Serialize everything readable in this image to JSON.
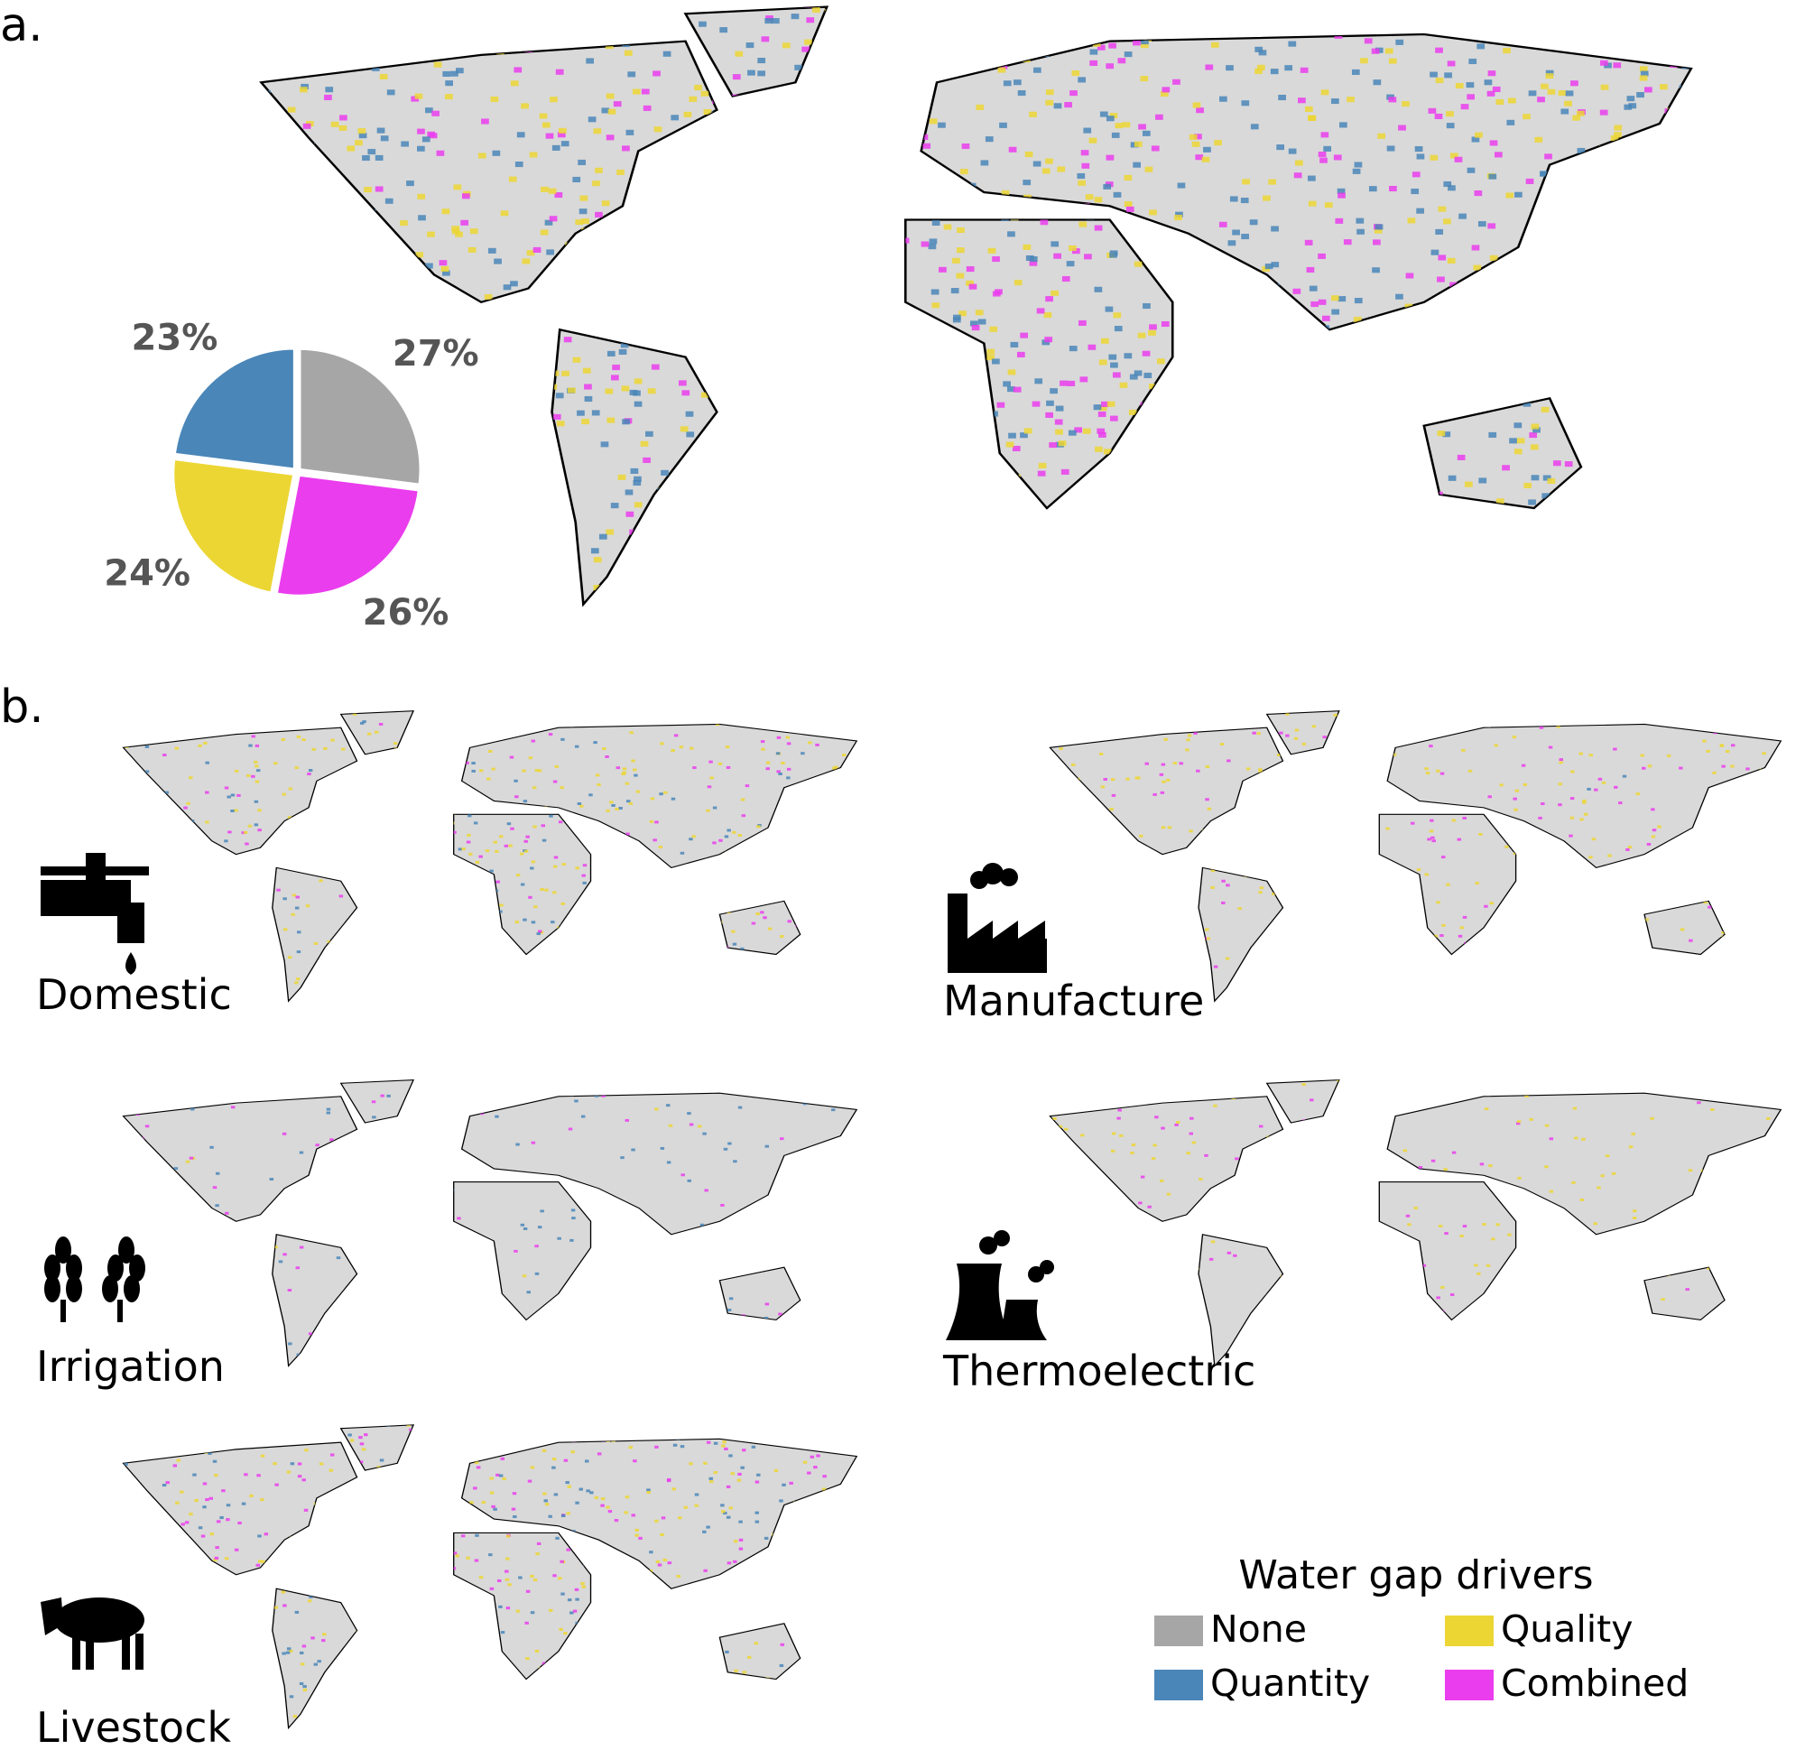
{
  "panels": [
    "a.",
    "b."
  ],
  "chart_data": {
    "type": "pie",
    "categories": [
      "None",
      "Combined",
      "Quality",
      "Quantity"
    ],
    "values": [
      27,
      26,
      24,
      23
    ],
    "value_labels": [
      "27%",
      "26%",
      "24%",
      "23%"
    ],
    "colors": [
      "#a6a6a6",
      "#ea3ded",
      "#ecd634",
      "#4a86b8"
    ],
    "legend_title": "Water gap drivers"
  },
  "maps": [
    "Domestic",
    "Manufacture",
    "Irrigation",
    "Thermoelectric",
    "Livestock"
  ]
}
